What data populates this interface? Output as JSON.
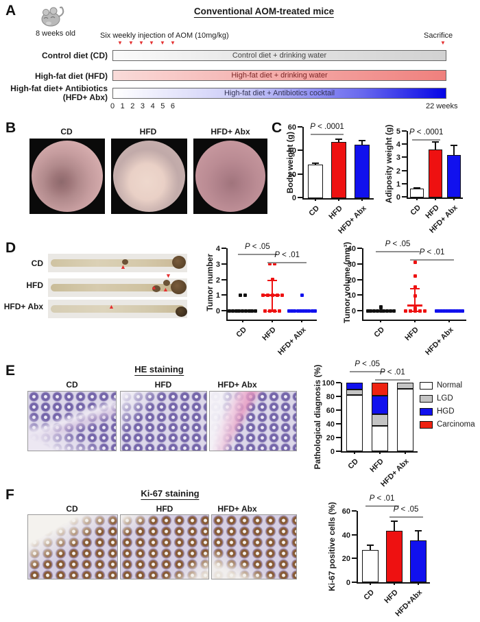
{
  "panels": {
    "A": {
      "letter": "A",
      "title": "Conventional AOM-treated mice",
      "age_label": "8 weeks old",
      "injection_label": "Six weekly injection of AOM (10mg/kg)",
      "sacrifice_label": "Sacrifice",
      "diet_rows": [
        {
          "label": "Control diet (CD)",
          "bar_text": "Control diet + drinking water"
        },
        {
          "label": "High-fat diet (HFD)",
          "bar_text": "High-fat diet + drinking water"
        },
        {
          "label": "High-fat diet+ Antibiotics",
          "label2": "(HFD+ Abx)",
          "bar_text": "High-fat diet + Antibiotics cocktail"
        }
      ],
      "weeks": [
        "0",
        "1",
        "2",
        "3",
        "4",
        "5",
        "6"
      ],
      "end_label": "22 weeks"
    },
    "B": {
      "letter": "B",
      "image_labels": [
        "CD",
        "HFD",
        "HFD+ Abx"
      ]
    },
    "C": {
      "letter": "C"
    },
    "D": {
      "letter": "D",
      "colon_labels": [
        "CD",
        "HFD",
        "HFD+ Abx"
      ]
    },
    "E": {
      "letter": "E",
      "title": "HE staining",
      "image_labels": [
        "CD",
        "HFD",
        "HFD+ Abx"
      ]
    },
    "F": {
      "letter": "F",
      "title": "Ki-67 staining",
      "image_labels": [
        "CD",
        "HFD",
        "HFD+ Abx"
      ]
    }
  },
  "colors": {
    "cd": "#ffffff",
    "hfd": "#ee1111",
    "abx": "#1111ee",
    "black_points": "#111111",
    "lgd_gray": "#c4c4c4",
    "arrow_red": "#e43030"
  },
  "chart_data": [
    {
      "name": "body_weight",
      "type": "bar",
      "ylabel": "Body weight (g)",
      "ylim": [
        0,
        60
      ],
      "yticks": [
        0,
        20,
        40,
        60
      ],
      "categories": [
        "CD",
        "HFD",
        "HFD+ Abx"
      ],
      "values": [
        28,
        47,
        45
      ],
      "errors": [
        2,
        3,
        4
      ],
      "colors": [
        "#ffffff",
        "#ee1111",
        "#1111ee"
      ],
      "significance": [
        {
          "from": 0,
          "to": 1,
          "label": "P < .0001"
        }
      ]
    },
    {
      "name": "adiposity_weight",
      "type": "bar",
      "ylabel": "Adiposity weight (g)",
      "ylim": [
        0,
        5
      ],
      "yticks": [
        0,
        1,
        2,
        3,
        4,
        5
      ],
      "categories": [
        "CD",
        "HFD",
        "HFD+ Abx"
      ],
      "values": [
        0.6,
        3.6,
        3.2
      ],
      "errors": [
        0.15,
        0.6,
        0.75
      ],
      "colors": [
        "#ffffff",
        "#ee1111",
        "#1111ee"
      ],
      "significance": [
        {
          "from": 0,
          "to": 1,
          "label": "P < .0001"
        }
      ]
    },
    {
      "name": "tumor_number",
      "type": "scatter",
      "ylabel": "Tumor number",
      "ylim": [
        0,
        4
      ],
      "yticks": [
        0,
        1,
        2,
        3,
        4
      ],
      "categories": [
        "CD",
        "HFD",
        "HFD+ Abx"
      ],
      "series": [
        {
          "name": "CD",
          "color": "#111111",
          "values": [
            1,
            1,
            0,
            0,
            0,
            0,
            0,
            0,
            0,
            0,
            0
          ]
        },
        {
          "name": "HFD",
          "color": "#ee1111",
          "values": [
            3,
            3,
            2,
            1,
            1,
            1,
            1,
            1,
            0,
            0,
            0,
            0
          ]
        },
        {
          "name": "HFD+ Abx",
          "color": "#1111ee",
          "values": [
            1,
            0,
            0,
            0,
            0,
            0,
            0,
            0,
            0,
            0,
            0
          ]
        }
      ],
      "stats": [
        {
          "category": "HFD",
          "median": 1,
          "q1": 0,
          "q3": 2
        }
      ],
      "significance": [
        {
          "from": 0,
          "to": 1,
          "label": "P < .05"
        },
        {
          "from": 1,
          "to": 2,
          "label": "P < .01"
        }
      ]
    },
    {
      "name": "tumor_volume",
      "type": "scatter",
      "ylabel": "Tumor volume (mm³)",
      "ylim": [
        0,
        40
      ],
      "yticks": [
        0,
        10,
        20,
        30,
        40
      ],
      "categories": [
        "CD",
        "HFD",
        "HFD+ Abx"
      ],
      "series": [
        {
          "name": "CD",
          "color": "#111111",
          "values": [
            2.5,
            2,
            0,
            0,
            0,
            0,
            0,
            0,
            0,
            0,
            0
          ]
        },
        {
          "name": "HFD",
          "color": "#ee1111",
          "values": [
            31,
            22,
            15,
            9.5,
            1.5,
            1,
            0.5,
            0,
            0,
            0,
            0,
            0
          ]
        },
        {
          "name": "HFD+ Abx",
          "color": "#1111ee",
          "values": [
            0,
            0,
            0,
            0,
            0,
            0,
            0,
            0,
            0,
            0,
            0
          ]
        }
      ],
      "stats": [
        {
          "category": "HFD",
          "median": 3.5,
          "q1": 0,
          "q3": 14.5
        }
      ],
      "significance": [
        {
          "from": 0,
          "to": 1,
          "label": "P < .05"
        },
        {
          "from": 1,
          "to": 2,
          "label": "P < .01"
        }
      ]
    },
    {
      "name": "pathological_diagnosis",
      "type": "stacked-bar",
      "ylabel": "Pathological diagnosis (%)",
      "ylim": [
        0,
        100
      ],
      "yticks": [
        0,
        20,
        40,
        60,
        80,
        100
      ],
      "categories": [
        "CD",
        "HFD",
        "HFD+ Abx"
      ],
      "series": [
        {
          "name": "Normal",
          "color": "#ffffff",
          "values": [
            82,
            37,
            91
          ]
        },
        {
          "name": "LGD",
          "color": "#c4c4c4",
          "values": [
            8,
            17,
            9
          ]
        },
        {
          "name": "HGD",
          "color": "#1111ee",
          "values": [
            10,
            27,
            0
          ]
        },
        {
          "name": "Carcinoma",
          "color": "#ee2211",
          "values": [
            0,
            19,
            0
          ]
        }
      ],
      "significance": [
        {
          "from": 0,
          "to": 1,
          "label": "P < .05"
        },
        {
          "from": 1,
          "to": 2,
          "label": "P < .01"
        }
      ]
    },
    {
      "name": "ki67_positive_cells",
      "type": "bar",
      "ylabel": "Ki-67 positive cells (%)",
      "ylim": [
        0,
        60
      ],
      "yticks": [
        0,
        20,
        40,
        60
      ],
      "categories": [
        "CD",
        "HFD",
        "HFD+Abx"
      ],
      "values": [
        27,
        43,
        35
      ],
      "errors": [
        5,
        9,
        9
      ],
      "colors": [
        "#ffffff",
        "#ee1111",
        "#1111ee"
      ],
      "significance": [
        {
          "from": 0,
          "to": 1,
          "label": "P < .01"
        },
        {
          "from": 1,
          "to": 2,
          "label": "P < .05"
        }
      ]
    }
  ]
}
